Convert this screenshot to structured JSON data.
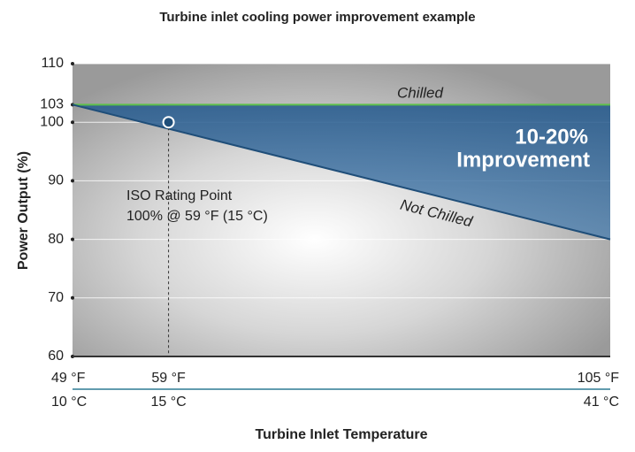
{
  "chart_data": {
    "type": "line",
    "title": "Turbine inlet cooling power improvement example",
    "x_label": "Turbine Inlet Temperature",
    "y_label": "Power Output (%)",
    "series": [
      {
        "name": "Chilled",
        "color": "#5cbf4a",
        "x": [
          49,
          105
        ],
        "values": [
          103,
          103
        ]
      },
      {
        "name": "Not Chilled",
        "color": "#1f4e79",
        "x": [
          49,
          105
        ],
        "values": [
          103,
          80
        ]
      }
    ],
    "xlim": [
      49,
      105
    ],
    "ylim": [
      60,
      110
    ],
    "yticks": [
      60,
      70,
      80,
      90,
      100,
      103,
      110
    ],
    "xticks": [
      {
        "value": 49,
        "label": "49 °F"
      },
      {
        "value": 59,
        "label": "59 °F"
      },
      {
        "value": 105,
        "label": "105 °F"
      }
    ],
    "xticks_celsius": [
      {
        "value": 49,
        "label": "10 °C"
      },
      {
        "value": 59,
        "label": "15 °C"
      },
      {
        "value": 105,
        "label": "41 °C"
      }
    ],
    "iso_point": {
      "x": 59,
      "y": 100
    },
    "annotations": {
      "improvement_value": "10-20%",
      "improvement_text": "Improvement",
      "iso_title": "ISO Rating Point",
      "iso_detail": "100% @ 59 °F (15 °C)"
    },
    "grid": true
  }
}
